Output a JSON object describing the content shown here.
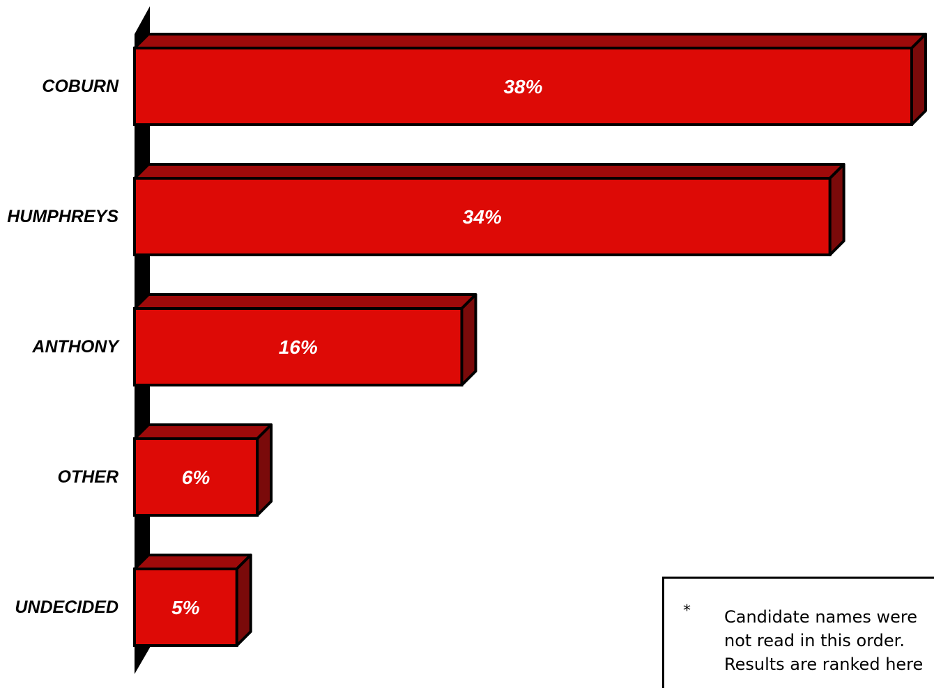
{
  "chart_data": {
    "type": "bar",
    "orientation": "horizontal",
    "categories": [
      "COBURN",
      "HUMPHREYS",
      "ANTHONY",
      "OTHER",
      "UNDECIDED"
    ],
    "values": [
      38,
      34,
      16,
      6,
      5
    ],
    "value_labels": [
      "38%",
      "34%",
      "16%",
      "6%",
      "5%"
    ],
    "xlim": [
      0,
      38
    ],
    "grid": false,
    "colors": {
      "front": "#dd0a06",
      "top": "#9e0a0a",
      "side": "#7a0a0a",
      "outline": "#000000",
      "value_text": "#ffffff"
    }
  },
  "note": {
    "marker": "*",
    "text": "Candidate names were not read in this order. Results are ranked here"
  }
}
